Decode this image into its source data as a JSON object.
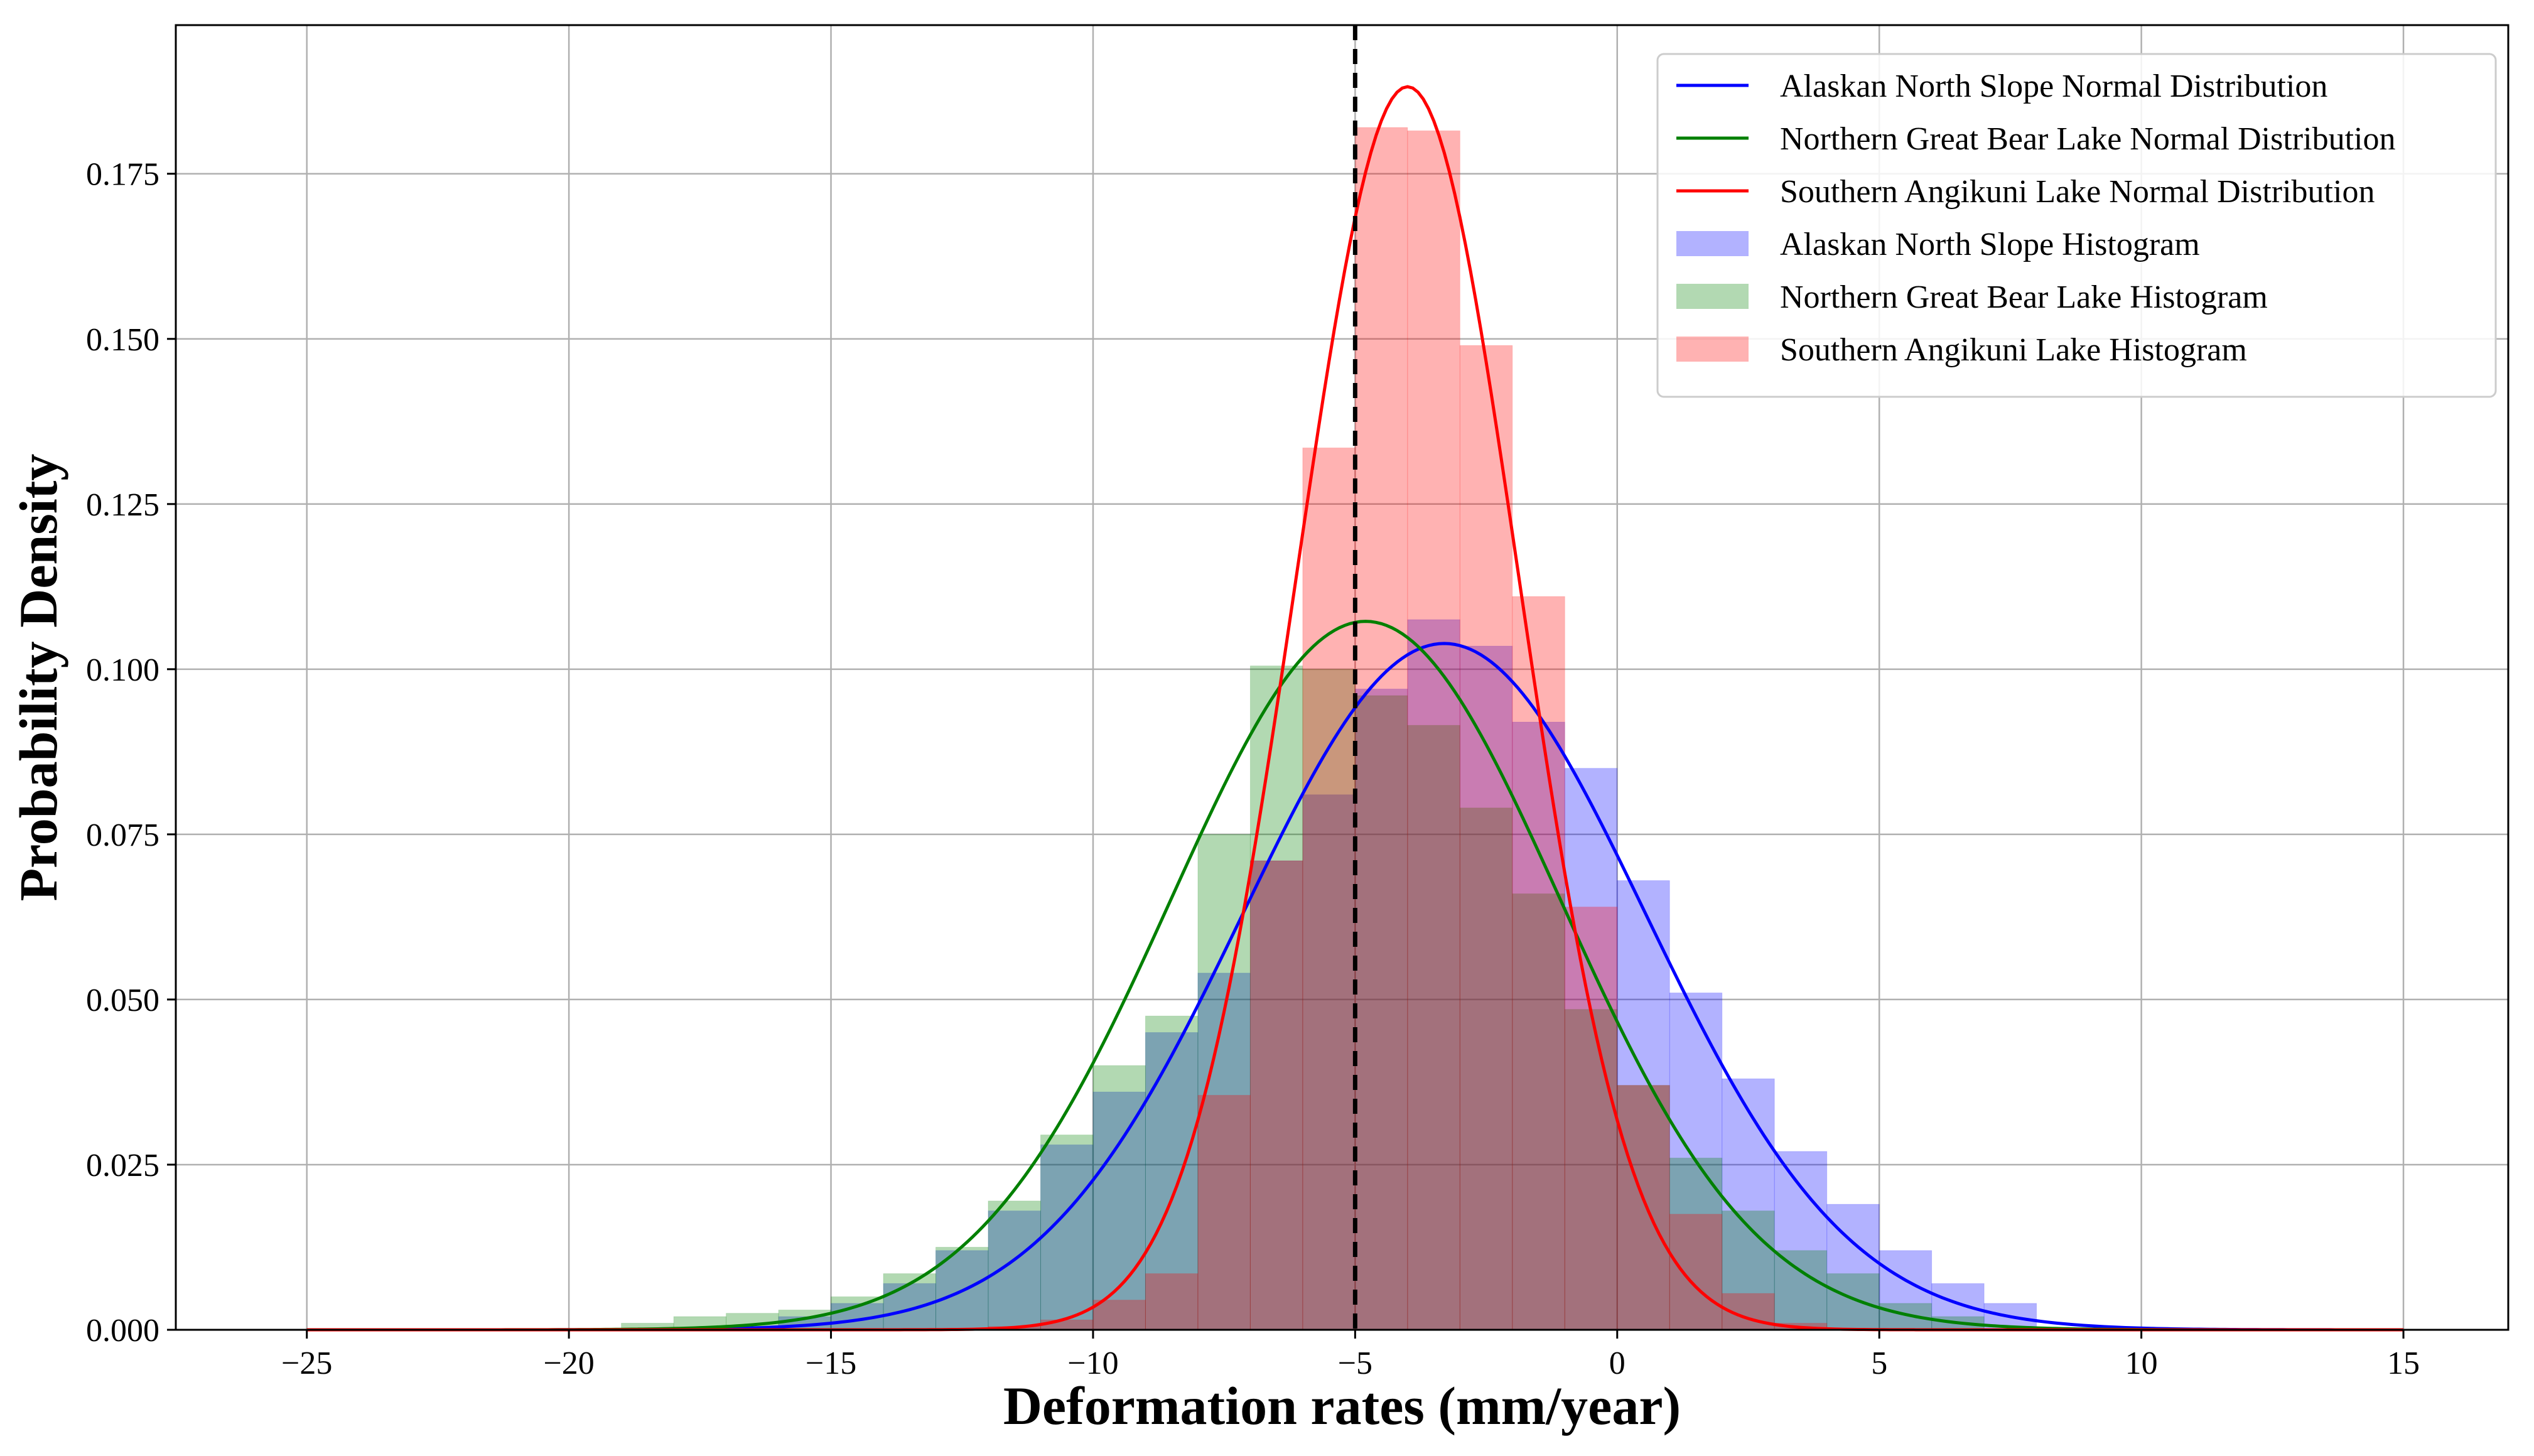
{
  "chart_data": {
    "type": "bar",
    "xlabel": "Deformation rates (mm/year)",
    "ylabel": "Probability Density",
    "xlim": [
      -27.5,
      17.0
    ],
    "ylim": [
      0,
      0.1975
    ],
    "xticks": [
      -25,
      -20,
      -15,
      -10,
      -5,
      0,
      5,
      10,
      15
    ],
    "xtick_labels": [
      "−25",
      "−20",
      "−15",
      "−10",
      "−5",
      "0",
      "5",
      "10",
      "15"
    ],
    "yticks": [
      0,
      0.025,
      0.05,
      0.075,
      0.1,
      0.125,
      0.15,
      0.175
    ],
    "ytick_labels": [
      "0.000",
      "0.025",
      "0.050",
      "0.075",
      "0.100",
      "0.125",
      "0.150",
      "0.175"
    ],
    "grid": true,
    "legend_position": "top-right",
    "reference_line": {
      "x": -5,
      "style": "dashed",
      "color": "#000000"
    },
    "histograms": [
      {
        "name": "Alaskan North Slope Histogram",
        "color": "#0000ff",
        "opacity": 0.3,
        "bin_edges": [
          -16.0,
          -15.0,
          -14.0,
          -13.0,
          -12.0,
          -11.0,
          -10.0,
          -9.0,
          -8.0,
          -7.0,
          -6.0,
          -5.0,
          -4.0,
          -3.0,
          -2.0,
          -1.0,
          0.0,
          1.0,
          2.0,
          3.0,
          4.0,
          5.0,
          6.0,
          7.0
        ],
        "values": [
          0.002,
          0.004,
          0.007,
          0.012,
          0.018,
          0.028,
          0.036,
          0.045,
          0.054,
          0.071,
          0.081,
          0.097,
          0.1075,
          0.1035,
          0.092,
          0.085,
          0.068,
          0.051,
          0.038,
          0.027,
          0.019,
          0.012,
          0.007,
          0.004
        ]
      },
      {
        "name": "Northern Great Bear Lake Histogram",
        "color": "#008000",
        "opacity": 0.3,
        "bin_edges": [
          -19.0,
          -18.0,
          -17.0,
          -16.0,
          -15.0,
          -14.0,
          -13.0,
          -12.0,
          -11.0,
          -10.0,
          -9.0,
          -8.0,
          -7.0,
          -6.0,
          -5.0,
          -4.0,
          -3.0,
          -2.0,
          -1.0,
          0.0,
          1.0,
          2.0,
          3.0,
          4.0,
          5.0,
          6.0
        ],
        "values": [
          0.001,
          0.002,
          0.0025,
          0.003,
          0.005,
          0.0085,
          0.0125,
          0.0195,
          0.0295,
          0.04,
          0.0475,
          0.075,
          0.1005,
          0.1,
          0.096,
          0.0915,
          0.079,
          0.066,
          0.0485,
          0.037,
          0.026,
          0.018,
          0.012,
          0.0085,
          0.004,
          0.002
        ]
      },
      {
        "name": "Southern Angikuni Lake Histogram",
        "color": "#ff0000",
        "opacity": 0.3,
        "bin_edges": [
          -12.0,
          -11.0,
          -10.0,
          -9.0,
          -8.0,
          -7.0,
          -6.0,
          -5.0,
          -4.0,
          -3.0,
          -2.0,
          -1.0,
          0.0,
          1.0,
          2.0,
          3.0
        ],
        "values": [
          0.0005,
          0.0015,
          0.0045,
          0.0085,
          0.0355,
          0.071,
          0.1335,
          0.182,
          0.1815,
          0.149,
          0.111,
          0.064,
          0.037,
          0.0175,
          0.0055,
          0.001
        ]
      }
    ],
    "normal_curves": [
      {
        "name": "Alaskan North Slope Normal Distribution",
        "color": "#0000ff",
        "mean": -3.3,
        "std": 3.84
      },
      {
        "name": "Northern Great Bear Lake Normal Distribution",
        "color": "#008000",
        "mean": -4.8,
        "std": 3.72
      },
      {
        "name": "Southern Angikuni Lake Normal Distribution",
        "color": "#ff0000",
        "mean": -4.0,
        "std": 2.12
      }
    ],
    "curve_x_range": [
      -25,
      15
    ],
    "legend": [
      {
        "label": "Alaskan North Slope Normal Distribution",
        "kind": "line",
        "color": "#0000ff"
      },
      {
        "label": "Northern Great Bear Lake Normal Distribution",
        "kind": "line",
        "color": "#008000"
      },
      {
        "label": "Southern Angikuni Lake Normal Distribution",
        "kind": "line",
        "color": "#ff0000"
      },
      {
        "label": "Alaskan North Slope Histogram",
        "kind": "patch",
        "color": "#0000ff"
      },
      {
        "label": "Northern Great Bear Lake Histogram",
        "kind": "patch",
        "color": "#008000"
      },
      {
        "label": "Southern Angikuni Lake Histogram",
        "kind": "patch",
        "color": "#ff0000"
      }
    ]
  }
}
